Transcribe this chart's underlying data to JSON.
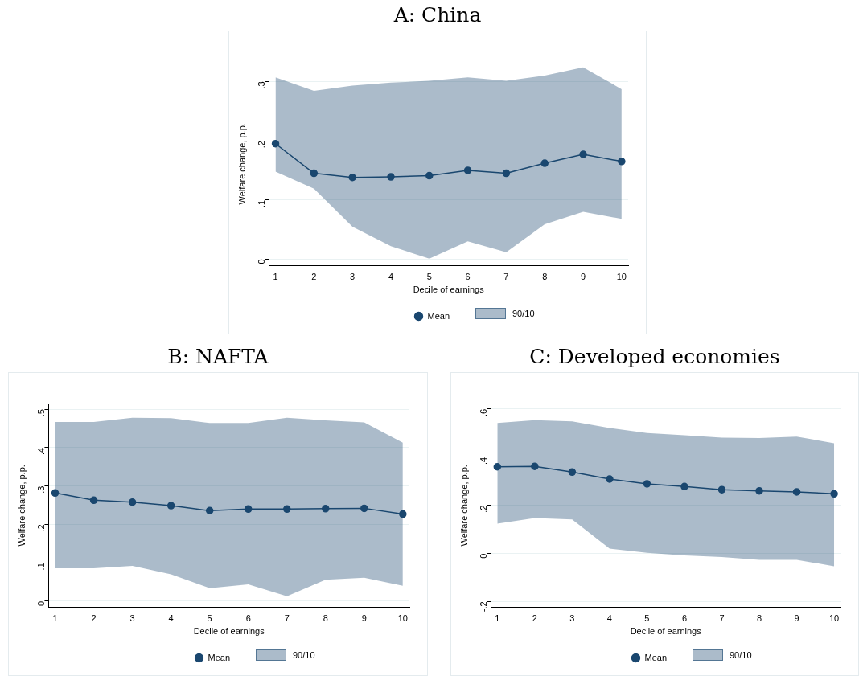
{
  "chart_data": [
    {
      "type": "line",
      "title": "A: China",
      "xlabel": "Decile of earnings",
      "ylabel": "Welfare change, p.p.",
      "annotations": [
        "90/10"
      ],
      "x": [
        1,
        2,
        3,
        4,
        5,
        6,
        7,
        8,
        9,
        10
      ],
      "xlim": [
        0.83,
        10.17
      ],
      "xticks": [
        1,
        2,
        3,
        4,
        5,
        6,
        7,
        8,
        9,
        10
      ],
      "ylim": [
        -0.011,
        0.333
      ],
      "yticks": [
        {
          "value": 0,
          "label": "0"
        },
        {
          "value": 0.1,
          "label": ".1"
        },
        {
          "value": 0.2,
          "label": ".2"
        },
        {
          "value": 0.3,
          "label": ".3"
        }
      ],
      "grid": "y",
      "legend": "bottom",
      "marker": "circle",
      "line_style": "solid",
      "series": [
        {
          "name": "Mean",
          "color": "#1a476f",
          "values": [
            0.195,
            0.145,
            0.138,
            0.139,
            0.141,
            0.15,
            0.145,
            0.162,
            0.177,
            0.165
          ],
          "lower": [
            0.148,
            0.119,
            0.055,
            0.022,
            0.001,
            0.03,
            0.012,
            0.059,
            0.08,
            0.068
          ],
          "upper": [
            0.307,
            0.284,
            0.293,
            0.298,
            0.301,
            0.307,
            0.301,
            0.31,
            0.324,
            0.287
          ]
        }
      ]
    },
    {
      "type": "line",
      "title": "B: NAFTA",
      "xlabel": "Decile of earnings",
      "ylabel": "Welfare change, p.p.",
      "annotations": [
        "90/10"
      ],
      "x": [
        1,
        2,
        3,
        4,
        5,
        6,
        7,
        8,
        9,
        10
      ],
      "xlim": [
        0.83,
        10.17
      ],
      "xticks": [
        1,
        2,
        3,
        4,
        5,
        6,
        7,
        8,
        9,
        10
      ],
      "ylim": [
        -0.016,
        0.515
      ],
      "yticks": [
        {
          "value": 0,
          "label": "0"
        },
        {
          "value": 0.1,
          "label": ".1"
        },
        {
          "value": 0.2,
          "label": ".2"
        },
        {
          "value": 0.3,
          "label": ".3"
        },
        {
          "value": 0.4,
          "label": ".4"
        },
        {
          "value": 0.5,
          "label": ".5"
        }
      ],
      "grid": "y",
      "legend": "bottom",
      "marker": "circle",
      "line_style": "solid",
      "series": [
        {
          "name": "Mean",
          "color": "#1a476f",
          "values": [
            0.282,
            0.263,
            0.258,
            0.249,
            0.236,
            0.24,
            0.24,
            0.241,
            0.242,
            0.227
          ],
          "lower": [
            0.086,
            0.086,
            0.092,
            0.07,
            0.034,
            0.044,
            0.013,
            0.056,
            0.061,
            0.04
          ],
          "upper": [
            0.467,
            0.467,
            0.478,
            0.477,
            0.464,
            0.464,
            0.478,
            0.471,
            0.466,
            0.413
          ]
        }
      ]
    },
    {
      "type": "line",
      "title": "C: Developed economies",
      "xlabel": "Decile of earnings",
      "ylabel": "Welfare change, p.p.",
      "annotations": [
        "90/10"
      ],
      "x": [
        1,
        2,
        3,
        4,
        5,
        6,
        7,
        8,
        9,
        10
      ],
      "xlim": [
        0.83,
        10.17
      ],
      "xticks": [
        1,
        2,
        3,
        4,
        5,
        6,
        7,
        8,
        9,
        10
      ],
      "ylim": [
        -0.224,
        0.623
      ],
      "yticks": [
        {
          "value": -0.2,
          "label": "-.2"
        },
        {
          "value": 0,
          "label": "0"
        },
        {
          "value": 0.2,
          "label": ".2"
        },
        {
          "value": 0.4,
          "label": ".4"
        },
        {
          "value": 0.6,
          "label": ".6"
        }
      ],
      "grid": "y",
      "legend": "bottom",
      "marker": "circle",
      "line_style": "solid",
      "series": [
        {
          "name": "Mean",
          "color": "#1a476f",
          "values": [
            0.36,
            0.362,
            0.338,
            0.309,
            0.289,
            0.278,
            0.265,
            0.26,
            0.256,
            0.248
          ],
          "lower": [
            0.124,
            0.147,
            0.141,
            0.02,
            0.003,
            -0.008,
            -0.015,
            -0.027,
            -0.027,
            -0.053
          ],
          "upper": [
            0.542,
            0.554,
            0.549,
            0.521,
            0.5,
            0.491,
            0.481,
            0.479,
            0.485,
            0.458
          ]
        }
      ]
    }
  ]
}
